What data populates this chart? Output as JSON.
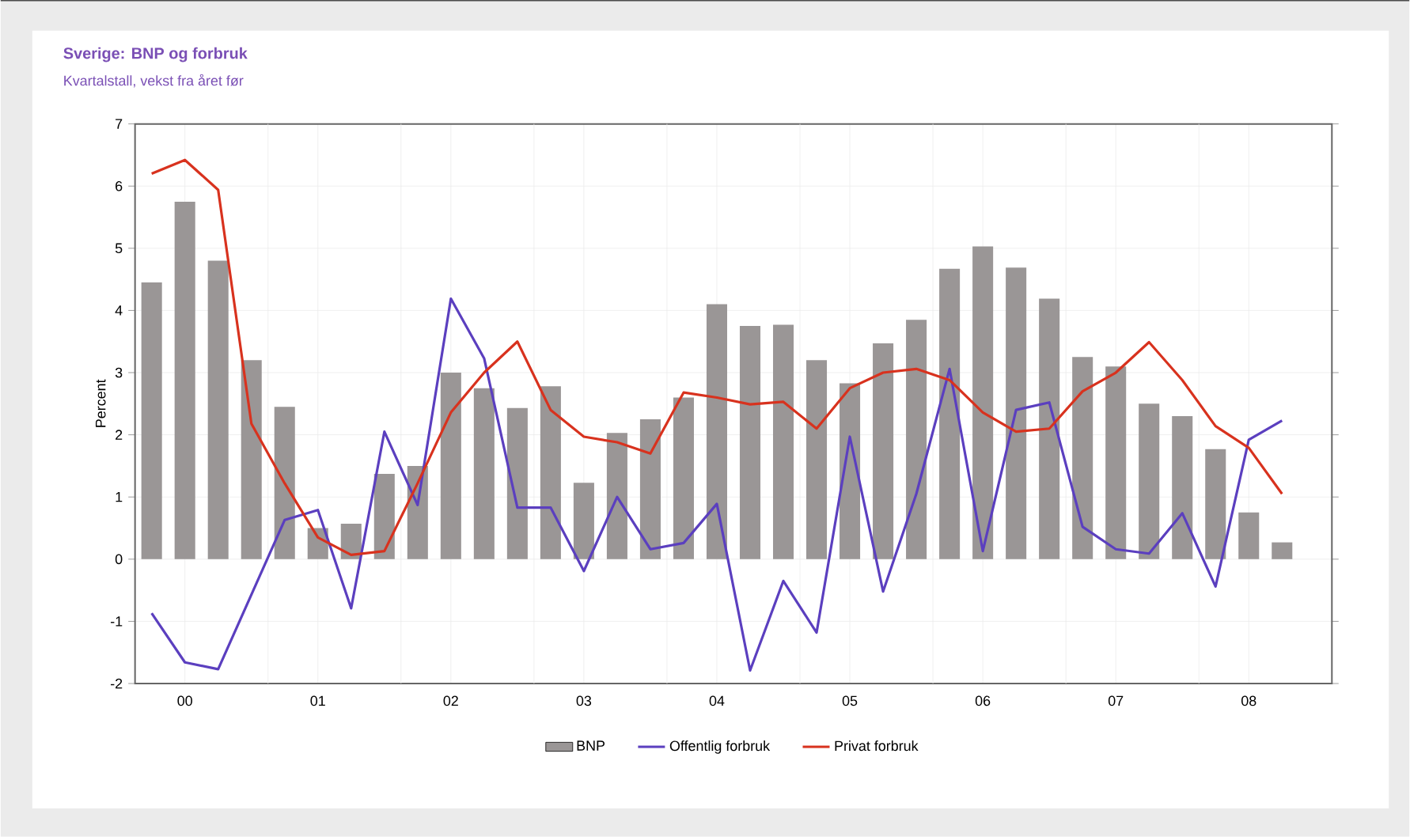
{
  "chart_data": {
    "type": "bar",
    "title": "Sverige: BNP og forbruk",
    "subtitle": "Kvartalstall, vekst fra året før",
    "ylabel": "Percent",
    "categories": [
      null,
      "00",
      null,
      null,
      null,
      "01",
      null,
      null,
      null,
      "02",
      null,
      null,
      null,
      "03",
      null,
      null,
      null,
      "04",
      null,
      null,
      null,
      "05",
      null,
      null,
      null,
      "06",
      null,
      null,
      null,
      "07",
      null,
      null,
      null,
      "08",
      null,
      null
    ],
    "ylim": [
      -2,
      7
    ],
    "yticks": [
      -2,
      -1,
      0,
      1,
      2,
      3,
      4,
      5,
      6,
      7
    ],
    "grid": true,
    "legend": "bottom",
    "series": [
      {
        "name": "BNP",
        "color": "#9a9696",
        "values": [
          4.45,
          5.75,
          4.8,
          3.2,
          2.45,
          0.5,
          0.57,
          1.37,
          1.5,
          3.0,
          2.75,
          2.43,
          2.78,
          1.23,
          2.03,
          2.25,
          2.6,
          4.1,
          3.75,
          3.77,
          3.2,
          2.83,
          3.47,
          3.85,
          4.67,
          5.03,
          4.69,
          4.19,
          3.25,
          3.1,
          2.5,
          2.3,
          1.77,
          0.75,
          0.27,
          0.0
        ]
      },
      {
        "name": "Offentlig forbruk",
        "type": "line",
        "color": "#5b3fbf",
        "values": [
          -0.87,
          -1.66,
          -1.77,
          -0.57,
          0.63,
          0.79,
          -0.79,
          2.05,
          0.87,
          4.19,
          3.23,
          0.83,
          0.83,
          -0.19,
          1.0,
          0.16,
          0.26,
          0.89,
          -1.79,
          -0.35,
          -1.18,
          1.97,
          -0.52,
          1.05,
          3.06,
          0.13,
          2.4,
          2.52,
          0.52,
          0.16,
          0.09,
          0.74,
          -0.44,
          1.92,
          2.23,
          null
        ]
      },
      {
        "name": "Privat forbruk",
        "type": "line",
        "color": "#d8321e",
        "values": [
          6.2,
          6.42,
          5.94,
          2.18,
          1.22,
          0.35,
          0.07,
          0.13,
          1.22,
          2.36,
          3.0,
          3.5,
          2.4,
          1.97,
          1.88,
          1.7,
          2.68,
          2.6,
          2.49,
          2.53,
          2.1,
          2.75,
          3.0,
          3.06,
          2.88,
          2.36,
          2.05,
          2.1,
          2.7,
          3.0,
          3.49,
          2.88,
          2.14,
          1.79,
          1.05,
          null
        ]
      }
    ]
  }
}
